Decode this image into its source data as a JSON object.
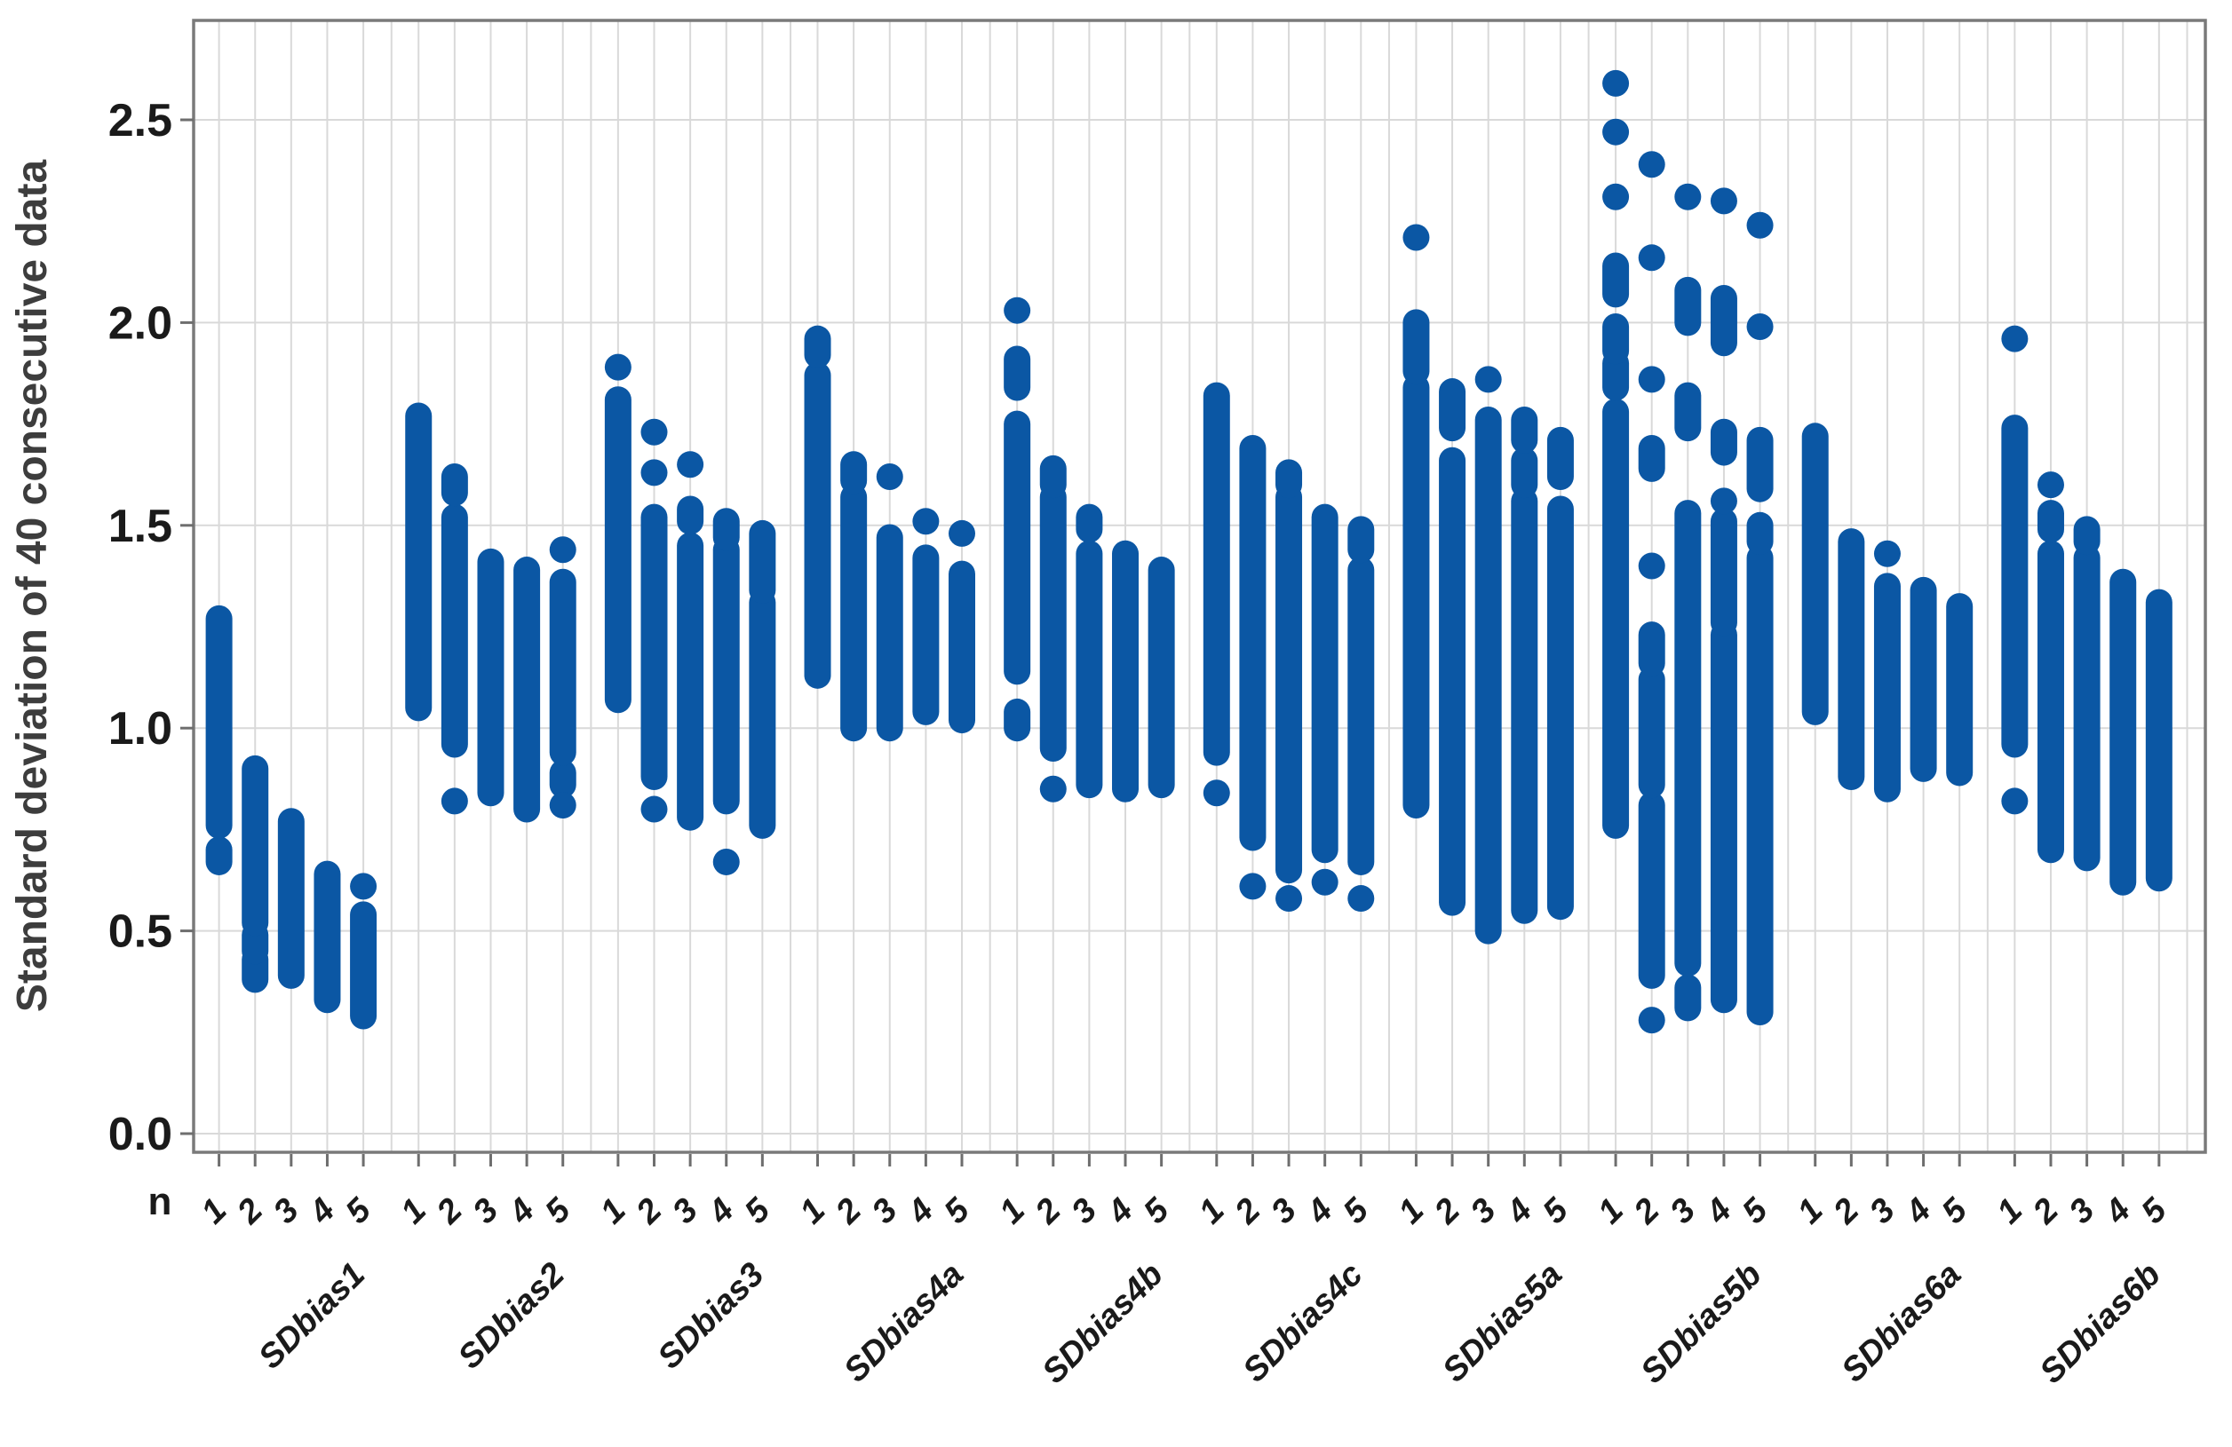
{
  "chart_data": {
    "type": "scatter",
    "subtype": "strip-dot-plot",
    "title": "",
    "ylabel": "Standard deviation of 40 consecutive data",
    "xlabel": "",
    "n_axis_label": "n",
    "ylim": [
      -0.05,
      2.75
    ],
    "grid": true,
    "yticks": [
      "0.0",
      "0.5",
      "1.0",
      "1.5",
      "2.0",
      "2.5"
    ],
    "ytick_values": [
      0.0,
      0.5,
      1.0,
      1.5,
      2.0,
      2.5
    ],
    "n_labels": [
      "1",
      "2",
      "3",
      "4",
      "5"
    ],
    "dot_color": "#0b57a4",
    "grid_color": "#d9d9d9",
    "border_color": "#7a7a7a",
    "tick_color": "#6e6e6e",
    "text_color": "#1a1a1a",
    "axis_title_color": "#3d3d3d",
    "groups": [
      {
        "label": "SDbias1",
        "columns": [
          {
            "n": "1",
            "segments": [
              [
                0.67,
                0.7
              ],
              [
                0.76,
                1.27
              ]
            ],
            "dots": []
          },
          {
            "n": "2",
            "segments": [
              [
                0.38,
                0.43
              ],
              [
                0.45,
                0.49
              ],
              [
                0.52,
                0.9
              ]
            ],
            "dots": []
          },
          {
            "n": "3",
            "segments": [
              [
                0.39,
                0.77
              ]
            ],
            "dots": []
          },
          {
            "n": "4",
            "segments": [
              [
                0.33,
                0.64
              ]
            ],
            "dots": []
          },
          {
            "n": "5",
            "segments": [
              [
                0.29,
                0.54
              ]
            ],
            "dots": [
              0.61
            ]
          }
        ]
      },
      {
        "label": "SDbias2",
        "columns": [
          {
            "n": "1",
            "segments": [
              [
                1.05,
                1.77
              ]
            ],
            "dots": []
          },
          {
            "n": "2",
            "segments": [
              [
                0.96,
                1.52
              ],
              [
                1.58,
                1.62
              ]
            ],
            "dots": [
              0.82
            ]
          },
          {
            "n": "3",
            "segments": [
              [
                0.84,
                1.41
              ]
            ],
            "dots": []
          },
          {
            "n": "4",
            "segments": [
              [
                0.8,
                1.39
              ]
            ],
            "dots": []
          },
          {
            "n": "5",
            "segments": [
              [
                0.86,
                0.89
              ],
              [
                0.94,
                1.36
              ]
            ],
            "dots": [
              1.44,
              0.81
            ]
          }
        ]
      },
      {
        "label": "SDbias3",
        "columns": [
          {
            "n": "1",
            "segments": [
              [
                1.07,
                1.81
              ]
            ],
            "dots": [
              1.89
            ]
          },
          {
            "n": "2",
            "segments": [
              [
                0.88,
                1.52
              ]
            ],
            "dots": [
              1.73,
              1.63,
              0.8
            ]
          },
          {
            "n": "3",
            "segments": [
              [
                0.78,
                1.45
              ],
              [
                1.51,
                1.54
              ]
            ],
            "dots": [
              1.65
            ]
          },
          {
            "n": "4",
            "segments": [
              [
                0.82,
                1.44
              ],
              [
                1.47,
                1.51
              ]
            ],
            "dots": [
              0.67
            ]
          },
          {
            "n": "5",
            "segments": [
              [
                0.76,
                1.31
              ],
              [
                1.34,
                1.48
              ]
            ],
            "dots": []
          }
        ]
      },
      {
        "label": "SDbias4a",
        "columns": [
          {
            "n": "1",
            "segments": [
              [
                1.13,
                1.87
              ],
              [
                1.92,
                1.96
              ]
            ],
            "dots": []
          },
          {
            "n": "2",
            "segments": [
              [
                1.0,
                1.57
              ],
              [
                1.61,
                1.65
              ]
            ],
            "dots": []
          },
          {
            "n": "3",
            "segments": [
              [
                1.0,
                1.47
              ]
            ],
            "dots": [
              1.62
            ]
          },
          {
            "n": "4",
            "segments": [
              [
                1.04,
                1.42
              ]
            ],
            "dots": [
              1.51
            ]
          },
          {
            "n": "5",
            "segments": [
              [
                1.02,
                1.38
              ]
            ],
            "dots": [
              1.48
            ]
          }
        ]
      },
      {
        "label": "SDbias4b",
        "columns": [
          {
            "n": "1",
            "segments": [
              [
                1.0,
                1.04
              ],
              [
                1.14,
                1.75
              ],
              [
                1.84,
                1.91
              ]
            ],
            "dots": [
              2.03
            ]
          },
          {
            "n": "2",
            "segments": [
              [
                0.95,
                1.57
              ],
              [
                1.6,
                1.64
              ]
            ],
            "dots": [
              0.85
            ]
          },
          {
            "n": "3",
            "segments": [
              [
                0.86,
                1.43
              ],
              [
                1.49,
                1.52
              ]
            ],
            "dots": []
          },
          {
            "n": "4",
            "segments": [
              [
                0.85,
                1.43
              ]
            ],
            "dots": []
          },
          {
            "n": "5",
            "segments": [
              [
                0.86,
                1.39
              ]
            ],
            "dots": []
          }
        ]
      },
      {
        "label": "SDbias4c",
        "columns": [
          {
            "n": "1",
            "segments": [
              [
                0.94,
                1.82
              ]
            ],
            "dots": [
              0.84
            ]
          },
          {
            "n": "2",
            "segments": [
              [
                0.73,
                1.69
              ]
            ],
            "dots": [
              0.61
            ]
          },
          {
            "n": "3",
            "segments": [
              [
                0.65,
                1.57
              ],
              [
                1.6,
                1.63
              ]
            ],
            "dots": [
              0.58
            ]
          },
          {
            "n": "4",
            "segments": [
              [
                0.7,
                1.52
              ]
            ],
            "dots": [
              0.62
            ]
          },
          {
            "n": "5",
            "segments": [
              [
                0.67,
                1.39
              ],
              [
                1.44,
                1.49
              ]
            ],
            "dots": [
              0.58
            ]
          }
        ]
      },
      {
        "label": "SDbias5a",
        "columns": [
          {
            "n": "1",
            "segments": [
              [
                0.81,
                1.84
              ],
              [
                1.88,
                2.0
              ]
            ],
            "dots": [
              2.21
            ]
          },
          {
            "n": "2",
            "segments": [
              [
                0.57,
                1.66
              ],
              [
                1.74,
                1.83
              ]
            ],
            "dots": []
          },
          {
            "n": "3",
            "segments": [
              [
                0.5,
                1.76
              ]
            ],
            "dots": [
              1.86
            ]
          },
          {
            "n": "4",
            "segments": [
              [
                0.55,
                1.56
              ],
              [
                1.6,
                1.66
              ],
              [
                1.71,
                1.76
              ]
            ],
            "dots": []
          },
          {
            "n": "5",
            "segments": [
              [
                0.56,
                1.54
              ],
              [
                1.62,
                1.71
              ]
            ],
            "dots": []
          }
        ]
      },
      {
        "label": "SDbias5b",
        "columns": [
          {
            "n": "1",
            "segments": [
              [
                0.76,
                1.78
              ],
              [
                1.84,
                1.9
              ],
              [
                1.93,
                1.99
              ],
              [
                2.07,
                2.14
              ]
            ],
            "dots": [
              2.59,
              2.47,
              2.31
            ]
          },
          {
            "n": "2",
            "segments": [
              [
                0.39,
                0.81
              ],
              [
                0.86,
                1.12
              ],
              [
                1.16,
                1.23
              ],
              [
                1.64,
                1.69
              ]
            ],
            "dots": [
              2.39,
              2.16,
              1.86,
              1.4,
              0.28
            ]
          },
          {
            "n": "3",
            "segments": [
              [
                0.31,
                0.36
              ],
              [
                0.42,
                1.53
              ],
              [
                1.74,
                1.82
              ],
              [
                2.0,
                2.08
              ]
            ],
            "dots": [
              2.31
            ]
          },
          {
            "n": "4",
            "segments": [
              [
                0.33,
                1.23
              ],
              [
                1.26,
                1.51
              ],
              [
                1.68,
                1.73
              ],
              [
                1.95,
                2.06
              ]
            ],
            "dots": [
              2.3,
              1.56
            ]
          },
          {
            "n": "5",
            "segments": [
              [
                0.3,
                1.42
              ],
              [
                1.46,
                1.5
              ],
              [
                1.59,
                1.71
              ]
            ],
            "dots": [
              2.24,
              1.99
            ]
          }
        ]
      },
      {
        "label": "SDbias6a",
        "columns": [
          {
            "n": "1",
            "segments": [
              [
                1.04,
                1.72
              ]
            ],
            "dots": []
          },
          {
            "n": "2",
            "segments": [
              [
                0.88,
                1.46
              ]
            ],
            "dots": []
          },
          {
            "n": "3",
            "segments": [
              [
                0.85,
                1.35
              ]
            ],
            "dots": [
              1.43
            ]
          },
          {
            "n": "4",
            "segments": [
              [
                0.9,
                1.34
              ]
            ],
            "dots": []
          },
          {
            "n": "5",
            "segments": [
              [
                0.89,
                1.3
              ]
            ],
            "dots": []
          }
        ]
      },
      {
        "label": "SDbias6b",
        "columns": [
          {
            "n": "1",
            "segments": [
              [
                0.96,
                1.74
              ]
            ],
            "dots": [
              1.96,
              0.82
            ]
          },
          {
            "n": "2",
            "segments": [
              [
                0.7,
                1.43
              ],
              [
                1.49,
                1.53
              ]
            ],
            "dots": [
              1.6
            ]
          },
          {
            "n": "3",
            "segments": [
              [
                0.68,
                1.42
              ],
              [
                1.46,
                1.49
              ]
            ],
            "dots": []
          },
          {
            "n": "4",
            "segments": [
              [
                0.62,
                1.36
              ]
            ],
            "dots": []
          },
          {
            "n": "5",
            "segments": [
              [
                0.63,
                1.31
              ]
            ],
            "dots": []
          }
        ]
      }
    ]
  }
}
